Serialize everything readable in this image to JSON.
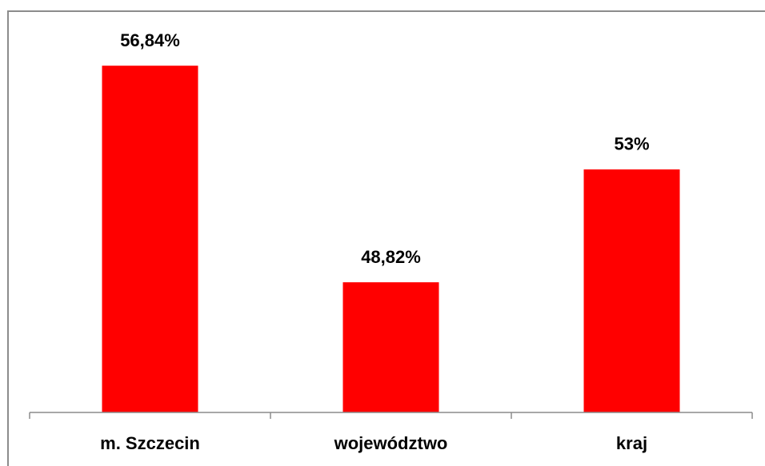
{
  "chart_data": {
    "type": "bar",
    "categories": [
      "m. Szczecin",
      "województwo",
      "kraj"
    ],
    "values": [
      56.84,
      48.82,
      53
    ],
    "value_labels": [
      "56,84%",
      "48,82%",
      "53%"
    ],
    "color": "#ff0000",
    "ylim": [
      44,
      58
    ]
  }
}
